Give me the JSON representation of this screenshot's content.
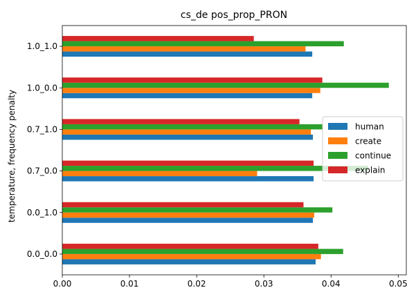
{
  "chart_data": {
    "type": "bar",
    "orientation": "horizontal",
    "title": "cs_de pos_prop_PRON",
    "xlabel": "",
    "ylabel": "temperature, frequency penalty",
    "xlim": [
      0.0,
      0.0512
    ],
    "xticks": [
      0.0,
      0.01,
      0.02,
      0.03,
      0.04,
      0.05
    ],
    "xtick_labels": [
      "0.00",
      "0.01",
      "0.02",
      "0.03",
      "0.04",
      "0.05"
    ],
    "categories": [
      "0.0_0.0",
      "0.0_1.0",
      "0.7_0.0",
      "0.7_1.0",
      "1.0_0.0",
      "1.0_1.0"
    ],
    "series": [
      {
        "name": "human",
        "color": "#1f77b4",
        "values": [
          0.0377,
          0.0373,
          0.0374,
          0.0373,
          0.0372,
          0.0372
        ]
      },
      {
        "name": "create",
        "color": "#ff7f0e",
        "values": [
          0.0385,
          0.0375,
          0.029,
          0.037,
          0.0384,
          0.0362
        ]
      },
      {
        "name": "continue",
        "color": "#2ca02c",
        "values": [
          0.0418,
          0.0402,
          0.0455,
          0.0387,
          0.0486,
          0.0419
        ]
      },
      {
        "name": "explain",
        "color": "#d62728",
        "values": [
          0.0381,
          0.0359,
          0.0374,
          0.0353,
          0.0387,
          0.0285
        ]
      }
    ],
    "legend": {
      "position": "center-right"
    },
    "grid": false
  }
}
